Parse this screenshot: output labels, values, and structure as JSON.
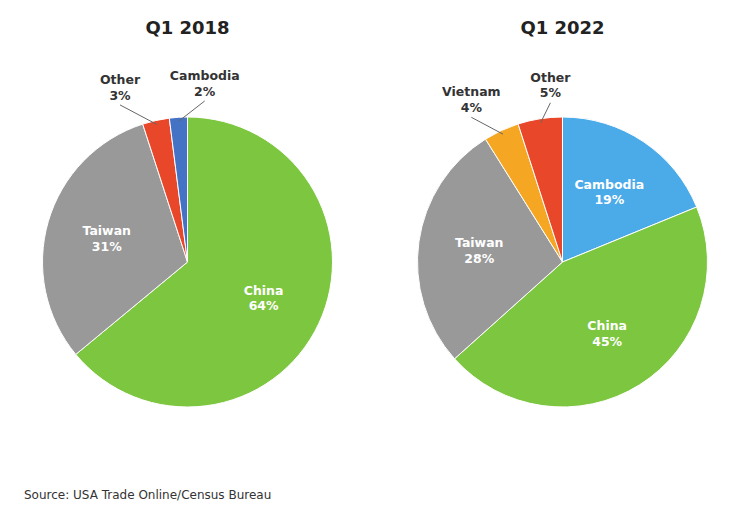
{
  "chart_data": [
    {
      "type": "pie",
      "title": "Q1 2018",
      "categories": [
        "China",
        "Taiwan",
        "Other",
        "Cambodia"
      ],
      "values": [
        64,
        31,
        3,
        2
      ],
      "value_labels": [
        "64%",
        "31%",
        "3%",
        "2%"
      ],
      "colors": [
        "#7DC640",
        "#999999",
        "#E8472A",
        "#4472C4"
      ],
      "data_labels": true,
      "annotations": [
        "Source: USA Trade Online/Census Bureau"
      ]
    },
    {
      "type": "pie",
      "title": "Q1 2022",
      "categories": [
        "Cambodia",
        "China",
        "Taiwan",
        "Vietnam",
        "Other"
      ],
      "values": [
        19,
        45,
        28,
        4,
        5
      ],
      "value_labels": [
        "19%",
        "45%",
        "28%",
        "4%",
        "5%"
      ],
      "colors": [
        "#4BAAE8",
        "#7DC640",
        "#999999",
        "#F5A623",
        "#E8472A"
      ],
      "data_labels": true
    }
  ]
}
